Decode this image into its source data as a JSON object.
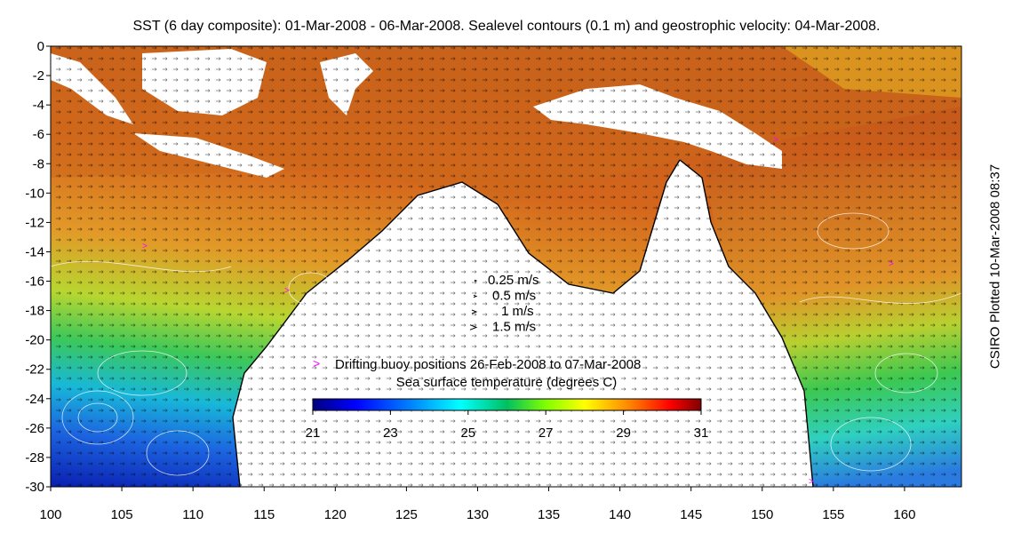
{
  "title": "SST (6 day composite): 01-Mar-2008 - 06-Mar-2008. Sealevel contours (0.1 m) and geostrophic velocity: 04-Mar-2008.",
  "credit": "CSIRO Plotted 10-Mar-2008 08:37",
  "map": {
    "lon_range": [
      100,
      164
    ],
    "lat_range": [
      -30,
      0
    ],
    "x_ticks": [
      "100",
      "105",
      "110",
      "115",
      "120",
      "125",
      "130",
      "135",
      "140",
      "145",
      "150",
      "155",
      "160"
    ],
    "y_ticks": [
      "0",
      "-2",
      "-4",
      "-6",
      "-8",
      "-10",
      "-12",
      "-14",
      "-16",
      "-18",
      "-20",
      "-22",
      "-24",
      "-26",
      "-28",
      "-30"
    ]
  },
  "velocity_legend": {
    "items": [
      {
        "label": "0.25 m/s"
      },
      {
        "label": "0.5 m/s"
      },
      {
        "label": "1 m/s"
      },
      {
        "label": "1.5 m/s"
      }
    ]
  },
  "buoy_legend": {
    "symbol": ">",
    "label": "Drifting buoy positions 26-Feb-2008 to 07-Mar-2008",
    "color": "#ff00ff"
  },
  "colorbar": {
    "title": "Sea surface temperature (degrees C)",
    "ticks": [
      "21",
      "23",
      "25",
      "27",
      "29",
      "31"
    ],
    "range": [
      21,
      31
    ],
    "colors": [
      "#00007f",
      "#0000ff",
      "#0080ff",
      "#00ffff",
      "#00c060",
      "#80ff00",
      "#ffff00",
      "#ff8000",
      "#ff0000",
      "#800000"
    ]
  }
}
